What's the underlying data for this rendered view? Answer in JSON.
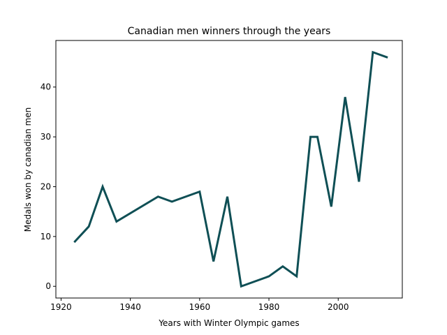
{
  "chart_data": {
    "type": "line",
    "title": "Canadian men winners through the years",
    "xlabel": "Years with Winter Olympic games",
    "ylabel": "Medals won by canadian men",
    "xlim": [
      1918.5,
      2018.5
    ],
    "ylim": [
      -2.35,
      49.35
    ],
    "x_ticks": [
      1920,
      1940,
      1960,
      1980,
      2000
    ],
    "y_ticks": [
      0,
      10,
      20,
      30,
      40
    ],
    "grid": false,
    "line_color": "#0f4f55",
    "series": [
      {
        "x": [
          1924,
          1928,
          1932,
          1936,
          1948,
          1952,
          1960,
          1964,
          1968,
          1972,
          1980,
          1984,
          1988,
          1992,
          1994,
          1998,
          2002,
          2006,
          2010,
          2014
        ],
        "values": [
          9,
          12,
          20,
          13,
          18,
          17,
          19,
          5,
          18,
          0,
          2,
          4,
          2,
          30,
          30,
          16,
          38,
          21,
          47,
          46
        ]
      }
    ]
  }
}
